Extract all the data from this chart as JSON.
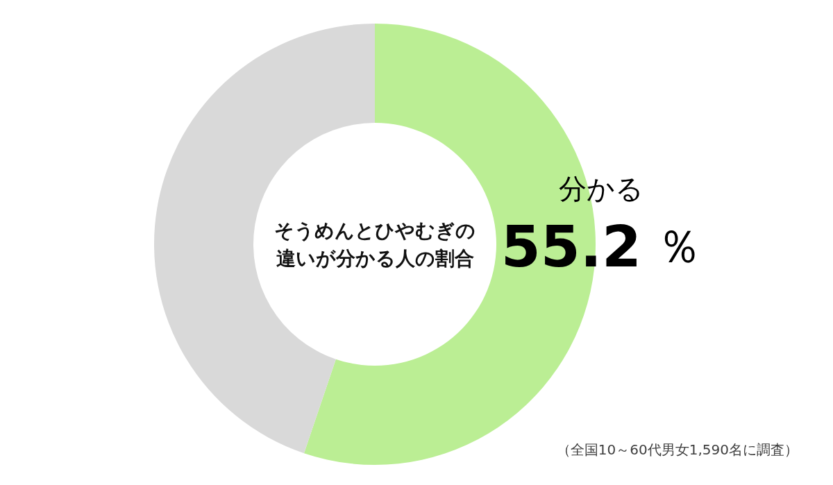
{
  "chart_data": {
    "type": "donut",
    "title": "そうめんとひやむぎの違いが分かる人の割合",
    "categories": [
      "分かる",
      null
    ],
    "values": [
      55.2,
      44.8
    ],
    "colors": [
      "#bbee94",
      "#d9d9d9"
    ],
    "value_labels": [
      "55.2 ％",
      null
    ],
    "annotations": [
      "（全国10～60代男女1,590名に調査）"
    ]
  }
}
